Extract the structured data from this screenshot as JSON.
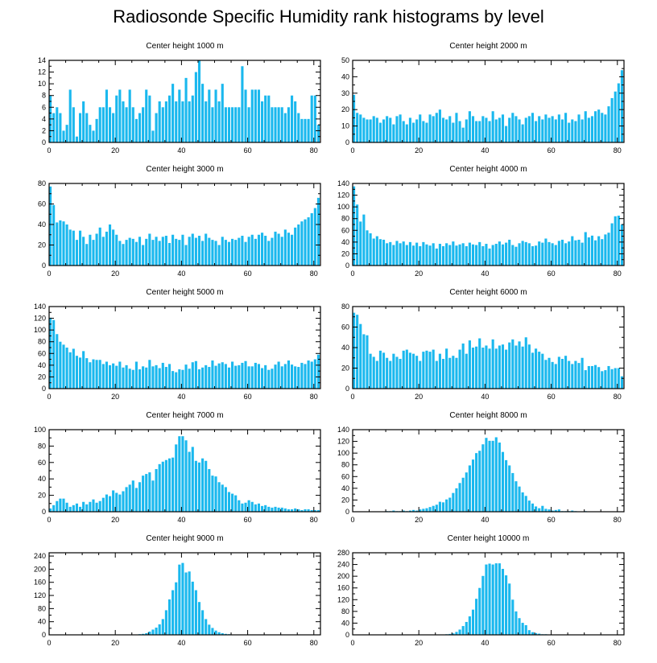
{
  "title": "Radiosonde Specific Humidity rank histograms by level",
  "colors": {
    "bar": "#1ab8ee",
    "axis": "#000000",
    "background": "#ffffff"
  },
  "chart_data": [
    {
      "type": "bar",
      "title": "Center height 1000 m",
      "xlim": [
        0,
        82
      ],
      "ylim": [
        0,
        14
      ],
      "xticks": [
        0,
        20,
        40,
        60,
        80
      ],
      "yticks": [
        0,
        2,
        4,
        6,
        8,
        10,
        12,
        14
      ],
      "values": [
        8,
        5,
        6,
        5,
        2,
        3,
        9,
        6,
        1,
        5,
        7,
        5,
        3,
        2,
        4,
        6,
        6,
        9,
        6,
        5,
        8,
        9,
        7,
        6,
        9,
        6,
        4,
        5,
        6,
        9,
        8,
        2,
        5,
        7,
        6,
        7,
        8,
        10,
        7,
        9,
        7,
        11,
        7,
        8,
        12,
        14,
        10,
        7,
        9,
        6,
        9,
        7,
        10,
        6,
        6,
        6,
        6,
        6,
        13,
        9,
        6,
        9,
        9,
        9,
        7,
        8,
        8,
        6,
        6,
        6,
        6,
        5,
        6,
        8,
        7,
        5,
        4,
        4,
        4,
        8,
        8,
        3
      ]
    },
    {
      "type": "bar",
      "title": "Center height 2000 m",
      "xlim": [
        0,
        82
      ],
      "ylim": [
        0,
        50
      ],
      "xticks": [
        0,
        20,
        40,
        60,
        80
      ],
      "yticks": [
        0,
        10,
        20,
        30,
        40,
        50
      ],
      "values": [
        29,
        18,
        17,
        15,
        14,
        14,
        16,
        15,
        12,
        14,
        16,
        15,
        11,
        16,
        17,
        13,
        11,
        15,
        12,
        14,
        17,
        13,
        12,
        17,
        16,
        18,
        20,
        15,
        14,
        16,
        12,
        18,
        13,
        9,
        14,
        19,
        16,
        13,
        13,
        16,
        15,
        13,
        19,
        14,
        15,
        17,
        10,
        15,
        18,
        16,
        14,
        11,
        15,
        16,
        18,
        13,
        16,
        14,
        17,
        15,
        16,
        14,
        17,
        14,
        18,
        12,
        14,
        13,
        17,
        14,
        19,
        15,
        16,
        19,
        20,
        18,
        17,
        22,
        27,
        31,
        36,
        44
      ]
    },
    {
      "type": "bar",
      "title": "Center height 3000 m",
      "xlim": [
        0,
        82
      ],
      "ylim": [
        0,
        80
      ],
      "xticks": [
        0,
        20,
        40,
        60,
        80
      ],
      "yticks": [
        0,
        20,
        40,
        60,
        80
      ],
      "values": [
        77,
        59,
        42,
        44,
        43,
        40,
        35,
        34,
        25,
        34,
        28,
        21,
        30,
        25,
        31,
        37,
        28,
        33,
        40,
        35,
        30,
        24,
        21,
        25,
        27,
        26,
        23,
        28,
        20,
        26,
        31,
        25,
        28,
        24,
        28,
        29,
        22,
        30,
        26,
        25,
        30,
        20,
        28,
        31,
        27,
        29,
        24,
        31,
        27,
        25,
        24,
        20,
        28,
        25,
        23,
        26,
        25,
        27,
        29,
        23,
        28,
        30,
        26,
        30,
        32,
        29,
        24,
        27,
        33,
        31,
        28,
        35,
        32,
        30,
        37,
        40,
        43,
        45,
        47,
        51,
        56,
        66
      ]
    },
    {
      "type": "bar",
      "title": "Center height 4000 m",
      "xlim": [
        0,
        82
      ],
      "ylim": [
        0,
        140
      ],
      "xticks": [
        0,
        20,
        40,
        60,
        80
      ],
      "yticks": [
        0,
        20,
        40,
        60,
        80,
        100,
        120,
        140
      ],
      "values": [
        135,
        104,
        75,
        87,
        60,
        55,
        46,
        50,
        45,
        44,
        38,
        40,
        35,
        42,
        38,
        41,
        35,
        40,
        34,
        39,
        33,
        40,
        36,
        34,
        38,
        29,
        37,
        33,
        38,
        35,
        41,
        34,
        36,
        38,
        33,
        39,
        36,
        35,
        40,
        33,
        37,
        29,
        35,
        37,
        41,
        36,
        39,
        44,
        35,
        32,
        38,
        42,
        40,
        38,
        33,
        34,
        41,
        39,
        46,
        40,
        38,
        35,
        42,
        44,
        38,
        41,
        50,
        43,
        44,
        39,
        57,
        48,
        51,
        43,
        50,
        45,
        53,
        56,
        72,
        84,
        85,
        70
      ]
    },
    {
      "type": "bar",
      "title": "Center height 5000 m",
      "xlim": [
        0,
        82
      ],
      "ylim": [
        0,
        140
      ],
      "xticks": [
        0,
        20,
        40,
        60,
        80
      ],
      "yticks": [
        0,
        20,
        40,
        60,
        80,
        100,
        120,
        140
      ],
      "values": [
        121,
        117,
        93,
        80,
        75,
        70,
        62,
        68,
        56,
        53,
        64,
        52,
        45,
        50,
        49,
        49,
        42,
        46,
        40,
        43,
        39,
        46,
        36,
        40,
        34,
        32,
        46,
        33,
        38,
        36,
        49,
        38,
        40,
        35,
        44,
        37,
        42,
        30,
        28,
        33,
        32,
        41,
        34,
        45,
        47,
        33,
        36,
        40,
        37,
        48,
        39,
        43,
        45,
        42,
        36,
        46,
        39,
        40,
        44,
        47,
        38,
        38,
        44,
        42,
        35,
        40,
        32,
        34,
        41,
        46,
        38,
        42,
        48,
        41,
        38,
        37,
        44,
        42,
        48,
        46,
        50,
        58
      ]
    },
    {
      "type": "bar",
      "title": "Center height 6000 m",
      "xlim": [
        0,
        82
      ],
      "ylim": [
        0,
        80
      ],
      "xticks": [
        0,
        20,
        40,
        60,
        80
      ],
      "yticks": [
        0,
        20,
        40,
        60,
        80
      ],
      "values": [
        74,
        72,
        63,
        53,
        52,
        34,
        31,
        27,
        37,
        35,
        30,
        27,
        34,
        31,
        29,
        37,
        38,
        35,
        34,
        32,
        27,
        36,
        37,
        36,
        38,
        27,
        34,
        29,
        39,
        30,
        32,
        30,
        38,
        44,
        34,
        47,
        40,
        41,
        49,
        40,
        42,
        39,
        48,
        39,
        42,
        43,
        38,
        45,
        48,
        42,
        46,
        41,
        50,
        43,
        35,
        39,
        36,
        34,
        28,
        30,
        26,
        24,
        31,
        29,
        32,
        27,
        24,
        27,
        25,
        30,
        18,
        22,
        22,
        23,
        21,
        17,
        18,
        22,
        19,
        20,
        20,
        12
      ]
    },
    {
      "type": "bar",
      "title": "Center height 7000 m",
      "xlim": [
        0,
        82
      ],
      "ylim": [
        0,
        100
      ],
      "xticks": [
        0,
        20,
        40,
        60,
        80
      ],
      "yticks": [
        0,
        20,
        40,
        60,
        80,
        100
      ],
      "values": [
        4,
        8,
        13,
        16,
        16,
        11,
        6,
        8,
        10,
        6,
        12,
        9,
        12,
        15,
        11,
        13,
        17,
        21,
        19,
        26,
        23,
        21,
        25,
        30,
        33,
        38,
        29,
        36,
        44,
        46,
        48,
        38,
        52,
        58,
        61,
        63,
        65,
        66,
        82,
        92,
        92,
        87,
        73,
        79,
        62,
        60,
        65,
        62,
        52,
        44,
        43,
        36,
        33,
        30,
        24,
        22,
        20,
        14,
        10,
        11,
        14,
        12,
        9,
        10,
        7,
        8,
        6,
        5,
        6,
        5,
        5,
        4,
        3,
        3,
        4,
        3,
        2,
        3,
        3,
        2,
        2,
        2
      ]
    },
    {
      "type": "bar",
      "title": "Center height 8000 m",
      "xlim": [
        0,
        82
      ],
      "ylim": [
        0,
        140
      ],
      "xticks": [
        0,
        20,
        40,
        60,
        80
      ],
      "yticks": [
        0,
        20,
        40,
        60,
        80,
        100,
        120,
        140
      ],
      "values": [
        0,
        0,
        0,
        0,
        0,
        0,
        0,
        0,
        0,
        0,
        1,
        1,
        2,
        1,
        1,
        2,
        1,
        2,
        3,
        2,
        4,
        5,
        6,
        8,
        10,
        12,
        17,
        16,
        21,
        24,
        32,
        40,
        49,
        58,
        67,
        79,
        89,
        100,
        104,
        115,
        126,
        121,
        121,
        127,
        118,
        102,
        88,
        79,
        66,
        52,
        43,
        33,
        27,
        19,
        14,
        9,
        6,
        10,
        5,
        4,
        2,
        3,
        4,
        1,
        1,
        1,
        2,
        1,
        0,
        0,
        1,
        0,
        0,
        0,
        0,
        0,
        0,
        0,
        0,
        0,
        0,
        0
      ]
    },
    {
      "type": "bar",
      "title": "Center height 9000 m",
      "xlim": [
        0,
        82
      ],
      "ylim": [
        0,
        250
      ],
      "xticks": [
        0,
        20,
        40,
        60,
        80
      ],
      "yticks": [
        0,
        40,
        80,
        120,
        160,
        200,
        240
      ],
      "values": [
        0,
        0,
        0,
        0,
        0,
        0,
        0,
        0,
        0,
        0,
        0,
        0,
        0,
        0,
        0,
        0,
        0,
        0,
        0,
        0,
        0,
        0,
        0,
        1,
        1,
        1,
        1,
        2,
        3,
        5,
        10,
        16,
        22,
        32,
        48,
        75,
        108,
        136,
        160,
        214,
        219,
        190,
        193,
        162,
        136,
        100,
        75,
        48,
        31,
        21,
        13,
        8,
        5,
        3,
        2,
        1,
        1,
        1,
        0,
        1,
        0,
        0,
        0,
        0,
        0,
        0,
        0,
        0,
        0,
        0,
        0,
        0,
        0,
        0,
        0,
        0,
        0,
        0,
        0,
        0,
        0,
        0
      ]
    },
    {
      "type": "bar",
      "title": "Center height 10000 m",
      "xlim": [
        0,
        82
      ],
      "ylim": [
        0,
        280
      ],
      "xticks": [
        0,
        20,
        40,
        60,
        80
      ],
      "yticks": [
        0,
        40,
        80,
        120,
        160,
        200,
        240,
        280
      ],
      "values": [
        0,
        0,
        0,
        0,
        0,
        0,
        0,
        0,
        0,
        0,
        0,
        0,
        0,
        0,
        0,
        0,
        0,
        0,
        0,
        0,
        0,
        0,
        0,
        0,
        0,
        0,
        0,
        1,
        2,
        3,
        5,
        10,
        18,
        30,
        44,
        63,
        86,
        123,
        160,
        201,
        240,
        243,
        240,
        244,
        244,
        225,
        203,
        175,
        120,
        80,
        57,
        41,
        33,
        16,
        9,
        6,
        4,
        2,
        2,
        1,
        1,
        1,
        0,
        0,
        0,
        0,
        0,
        0,
        0,
        0,
        0,
        0,
        0,
        0,
        0,
        0,
        0,
        0,
        0,
        0,
        0,
        0
      ]
    }
  ]
}
